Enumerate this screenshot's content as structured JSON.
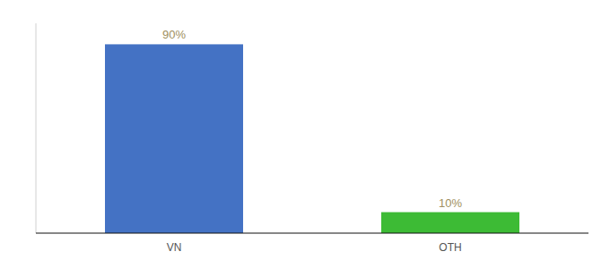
{
  "chart_data": {
    "type": "bar",
    "categories": [
      "VN",
      "OTH"
    ],
    "values": [
      90,
      10
    ],
    "value_labels": [
      "90%",
      "10%"
    ],
    "colors": [
      "#4472c4",
      "#3dbb35"
    ],
    "ylim": [
      0,
      100
    ],
    "grid": false,
    "data_labels": true,
    "tick_labels": "x"
  }
}
